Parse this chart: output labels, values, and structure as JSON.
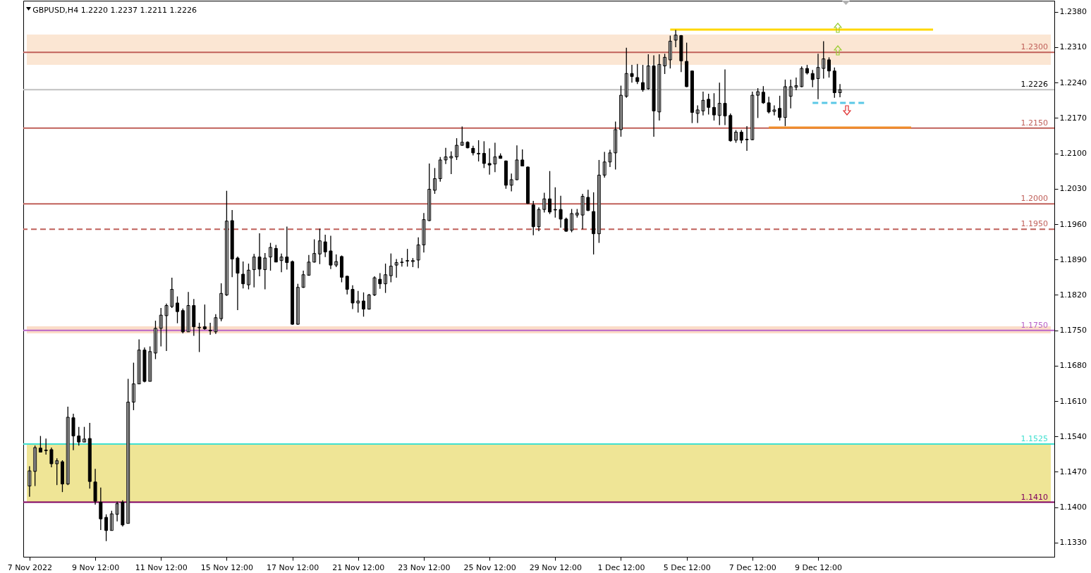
{
  "chart_data": {
    "type": "candlestick",
    "title": "GBPUSD,H4  1.2220 1.2237 1.2211 1.2226",
    "categories": [
      "7 Nov 2022",
      null,
      null,
      null,
      null,
      null,
      null,
      null,
      null,
      null,
      null,
      null,
      "9 Nov 12:00",
      null,
      null,
      null,
      null,
      null,
      null,
      null,
      null,
      null,
      null,
      null,
      "11 Nov 12:00",
      null,
      null,
      null,
      null,
      null,
      null,
      null,
      null,
      null,
      null,
      null,
      "15 Nov 12:00",
      null,
      null,
      null,
      null,
      null,
      null,
      null,
      null,
      null,
      null,
      null,
      "17 Nov 12:00",
      null,
      null,
      null,
      null,
      null,
      null,
      null,
      null,
      null,
      null,
      null,
      "21 Nov 12:00",
      null,
      null,
      null,
      null,
      null,
      null,
      null,
      null,
      null,
      null,
      null,
      "23 Nov 12:00",
      null,
      null,
      null,
      null,
      null,
      null,
      null,
      null,
      null,
      null,
      null,
      "25 Nov 12:00",
      null,
      null,
      null,
      null,
      null,
      null,
      null,
      null,
      null,
      null,
      null,
      "29 Nov 12:00",
      null,
      null,
      null,
      null,
      null,
      null,
      null,
      null,
      null,
      null,
      null,
      "1 Dec 12:00",
      null,
      null,
      null,
      null,
      null,
      null,
      null,
      null,
      null,
      null,
      null,
      "5 Dec 12:00",
      null,
      null,
      null,
      null,
      null,
      null,
      null,
      null,
      null,
      null,
      null,
      "7 Dec 12:00",
      null,
      null,
      null,
      null,
      null,
      null,
      null,
      null,
      null,
      null,
      null,
      "9 Dec 12:00",
      null,
      null,
      null,
      null,
      null,
      null,
      null,
      null,
      null,
      null,
      null,
      null,
      null,
      null,
      null,
      null,
      null,
      null,
      null,
      null,
      null,
      null,
      null,
      null,
      null,
      null,
      null,
      null,
      null,
      null,
      null,
      null,
      null,
      null,
      null,
      null,
      null,
      null,
      null,
      null,
      null,
      null
    ],
    "ohlc": [
      [
        1.1442,
        1.1481,
        1.1421,
        1.1472
      ],
      [
        1.1471,
        1.1522,
        1.1442,
        1.1518
      ],
      [
        1.1517,
        1.1541,
        1.1509,
        1.1509
      ],
      [
        1.1513,
        1.1536,
        1.1504,
        1.1512
      ],
      [
        1.1514,
        1.1518,
        1.1479,
        1.1486
      ],
      [
        1.1486,
        1.1497,
        1.1444,
        1.1492
      ],
      [
        1.149,
        1.1493,
        1.143,
        1.1446
      ],
      [
        1.1446,
        1.1599,
        1.1444,
        1.1578
      ],
      [
        1.1577,
        1.1585,
        1.1513,
        1.1541
      ],
      [
        1.1541,
        1.1559,
        1.1522,
        1.1529
      ],
      [
        1.1529,
        1.1559,
        1.1529,
        1.1535
      ],
      [
        1.1536,
        1.1567,
        1.1437,
        1.1451
      ],
      [
        1.145,
        1.1476,
        1.1405,
        1.1412
      ],
      [
        1.141,
        1.1439,
        1.1355,
        1.1377
      ],
      [
        1.138,
        1.1386,
        1.1333,
        1.1354
      ],
      [
        1.1354,
        1.1393,
        1.1354,
        1.1387
      ],
      [
        1.1386,
        1.1411,
        1.1372,
        1.1407
      ],
      [
        1.141,
        1.1414,
        1.1362,
        1.1365
      ],
      [
        1.1368,
        1.1654,
        1.1368,
        1.1608
      ],
      [
        1.1608,
        1.1686,
        1.1592,
        1.1644
      ],
      [
        1.1644,
        1.1732,
        1.1644,
        1.1711
      ],
      [
        1.1711,
        1.1716,
        1.1647,
        1.1649
      ],
      [
        1.1649,
        1.1718,
        1.1649,
        1.1708
      ],
      [
        1.1705,
        1.1769,
        1.1693,
        1.1754
      ],
      [
        1.1754,
        1.1794,
        1.1718,
        1.178
      ],
      [
        1.1779,
        1.1803,
        1.1709,
        1.1799
      ],
      [
        1.1797,
        1.1854,
        1.1794,
        1.1831
      ],
      [
        1.1804,
        1.1817,
        1.1764,
        1.1787
      ],
      [
        1.1789,
        1.1793,
        1.1744,
        1.1747
      ],
      [
        1.1747,
        1.1826,
        1.1747,
        1.1799
      ],
      [
        1.1799,
        1.1812,
        1.1739,
        1.1757
      ],
      [
        1.1755,
        1.1765,
        1.1707,
        1.1756
      ],
      [
        1.1757,
        1.1801,
        1.1751,
        1.1753
      ],
      [
        1.175,
        1.1765,
        1.1741,
        1.1749
      ],
      [
        1.1747,
        1.1782,
        1.1743,
        1.1775
      ],
      [
        1.1773,
        1.1843,
        1.1768,
        1.1823
      ],
      [
        1.182,
        1.2026,
        1.1818,
        1.1966
      ],
      [
        1.1967,
        1.1988,
        1.1855,
        1.1891
      ],
      [
        1.1893,
        1.1896,
        1.179,
        1.1863
      ],
      [
        1.1861,
        1.1886,
        1.1833,
        1.1842
      ],
      [
        1.184,
        1.1882,
        1.1831,
        1.1869
      ],
      [
        1.187,
        1.1901,
        1.1835,
        1.1895
      ],
      [
        1.1895,
        1.1942,
        1.1857,
        1.1871
      ],
      [
        1.187,
        1.1903,
        1.1831,
        1.1893
      ],
      [
        1.1895,
        1.1923,
        1.1868,
        1.1914
      ],
      [
        1.1912,
        1.1919,
        1.1885,
        1.1885
      ],
      [
        1.1888,
        1.1902,
        1.1865,
        1.1895
      ],
      [
        1.1895,
        1.1955,
        1.187,
        1.1884
      ],
      [
        1.1886,
        1.1888,
        1.1761,
        1.1762
      ],
      [
        1.1762,
        1.1842,
        1.1761,
        1.1835
      ],
      [
        1.1835,
        1.1868,
        1.1834,
        1.186
      ],
      [
        1.1859,
        1.1899,
        1.1858,
        1.1885
      ],
      [
        1.1885,
        1.193,
        1.1884,
        1.1902
      ],
      [
        1.1901,
        1.1951,
        1.1881,
        1.1927
      ],
      [
        1.1925,
        1.1939,
        1.1895,
        1.1905
      ],
      [
        1.1907,
        1.1937,
        1.1871,
        1.1879
      ],
      [
        1.1879,
        1.19,
        1.1875,
        1.1886
      ],
      [
        1.1896,
        1.1898,
        1.1845,
        1.1855
      ],
      [
        1.1857,
        1.1858,
        1.1821,
        1.1831
      ],
      [
        1.1831,
        1.1839,
        1.1792,
        1.1804
      ],
      [
        1.1804,
        1.1828,
        1.1785,
        1.1808
      ],
      [
        1.1808,
        1.1825,
        1.1777,
        1.1792
      ],
      [
        1.1792,
        1.1822,
        1.1791,
        1.182
      ],
      [
        1.182,
        1.1857,
        1.1818,
        1.1854
      ],
      [
        1.1851,
        1.1863,
        1.1832,
        1.1842
      ],
      [
        1.1842,
        1.1882,
        1.1824,
        1.186
      ],
      [
        1.1858,
        1.1902,
        1.1845,
        1.1877
      ],
      [
        1.1879,
        1.1891,
        1.1854,
        1.1884
      ],
      [
        1.1884,
        1.1893,
        1.1876,
        1.1885
      ],
      [
        1.1887,
        1.1911,
        1.1876,
        1.1888
      ],
      [
        1.1886,
        1.1893,
        1.1875,
        1.1888
      ],
      [
        1.1889,
        1.1934,
        1.1873,
        1.1919
      ],
      [
        1.1919,
        1.1982,
        1.1904,
        1.1969
      ],
      [
        1.1967,
        1.208,
        1.1966,
        1.2029
      ],
      [
        1.2027,
        1.2071,
        1.202,
        1.205
      ],
      [
        1.205,
        1.2093,
        1.2044,
        1.2087
      ],
      [
        1.2087,
        1.2111,
        1.2079,
        1.2093
      ],
      [
        1.2091,
        1.2104,
        1.2059,
        1.2094
      ],
      [
        1.2093,
        1.213,
        1.2087,
        1.2116
      ],
      [
        1.2116,
        1.2153,
        1.2115,
        1.2122
      ],
      [
        1.2122,
        1.2124,
        1.211,
        1.2111
      ],
      [
        1.211,
        1.2115,
        1.2096,
        1.2101
      ],
      [
        1.21,
        1.2126,
        1.2084,
        1.2099
      ],
      [
        1.21,
        1.2124,
        1.2071,
        1.208
      ],
      [
        1.208,
        1.211,
        1.2058,
        1.2077
      ],
      [
        1.2079,
        1.2121,
        1.2063,
        1.2093
      ],
      [
        1.2095,
        1.21,
        1.209,
        1.209
      ],
      [
        1.2085,
        1.2086,
        1.203,
        1.2037
      ],
      [
        1.2037,
        1.206,
        1.2025,
        1.2048
      ],
      [
        1.2048,
        1.2116,
        1.2047,
        1.2087
      ],
      [
        1.2087,
        1.2108,
        1.2075,
        1.2075
      ],
      [
        1.2073,
        1.2074,
        1.2,
        1.2001
      ],
      [
        1.1998,
        1.2006,
        1.1938,
        1.1955
      ],
      [
        1.1955,
        1.1993,
        1.1946,
        1.1989
      ],
      [
        1.1989,
        1.2022,
        1.1983,
        1.201
      ],
      [
        1.201,
        1.2065,
        1.198,
        1.1984
      ],
      [
        1.1989,
        1.2033,
        1.1973,
        1.1988
      ],
      [
        1.1989,
        1.2016,
        1.1953,
        1.197
      ],
      [
        1.197,
        1.1973,
        1.1945,
        1.1946
      ],
      [
        1.1948,
        1.199,
        1.1944,
        1.1981
      ],
      [
        1.1978,
        1.199,
        1.1973,
        1.1982
      ],
      [
        1.1978,
        1.202,
        1.195,
        1.2015
      ],
      [
        1.2013,
        1.2028,
        1.1986,
        1.1987
      ],
      [
        1.1985,
        1.2023,
        1.19,
        1.1941
      ],
      [
        1.1941,
        1.2087,
        1.1923,
        1.2057
      ],
      [
        1.2057,
        1.2103,
        1.2052,
        1.2083
      ],
      [
        1.2083,
        1.2107,
        1.2073,
        1.2101
      ],
      [
        1.2101,
        1.2163,
        1.2068,
        1.2147
      ],
      [
        1.2147,
        1.2234,
        1.2133,
        1.2215
      ],
      [
        1.2213,
        1.2309,
        1.221,
        1.2258
      ],
      [
        1.2258,
        1.2275,
        1.224,
        1.2252
      ],
      [
        1.225,
        1.2277,
        1.2237,
        1.2242
      ],
      [
        1.224,
        1.2275,
        1.2222,
        1.2226
      ],
      [
        1.2228,
        1.2296,
        1.2226,
        1.2273
      ],
      [
        1.2273,
        1.2294,
        1.2133,
        1.2184
      ],
      [
        1.2182,
        1.2296,
        1.2165,
        1.2276
      ],
      [
        1.2273,
        1.2297,
        1.2257,
        1.229
      ],
      [
        1.2285,
        1.2333,
        1.2268,
        1.2322
      ],
      [
        1.2324,
        1.2344,
        1.231,
        1.2334
      ],
      [
        1.2333,
        1.2334,
        1.2261,
        1.2283
      ],
      [
        1.2282,
        1.2319,
        1.2231,
        1.2232
      ],
      [
        1.2263,
        1.2264,
        1.216,
        1.2181
      ],
      [
        1.2179,
        1.2195,
        1.216,
        1.2186
      ],
      [
        1.2184,
        1.2222,
        1.2175,
        1.2205
      ],
      [
        1.2207,
        1.2218,
        1.2177,
        1.2191
      ],
      [
        1.2191,
        1.2219,
        1.2165,
        1.2176
      ],
      [
        1.2175,
        1.224,
        1.2156,
        1.2199
      ],
      [
        1.2199,
        1.2266,
        1.2156,
        1.2174
      ],
      [
        1.2175,
        1.2179,
        1.2123,
        1.2125
      ],
      [
        1.2126,
        1.2146,
        1.2121,
        1.2142
      ],
      [
        1.2142,
        1.2146,
        1.212,
        1.2126
      ],
      [
        1.2128,
        1.2154,
        1.2105,
        1.2127
      ],
      [
        1.2127,
        1.2222,
        1.2126,
        1.2215
      ],
      [
        1.2215,
        1.2229,
        1.217,
        1.2222
      ],
      [
        1.2221,
        1.2233,
        1.2198,
        1.22
      ],
      [
        1.22,
        1.2212,
        1.2179,
        1.2182
      ],
      [
        1.2183,
        1.2195,
        1.2175,
        1.2186
      ],
      [
        1.2189,
        1.2214,
        1.2165,
        1.2171
      ],
      [
        1.2171,
        1.2246,
        1.2154,
        1.2232
      ],
      [
        1.2213,
        1.2246,
        1.2189,
        1.2232
      ],
      [
        1.2231,
        1.225,
        1.2225,
        1.2234
      ],
      [
        1.2232,
        1.2272,
        1.2231,
        1.2268
      ],
      [
        1.2268,
        1.2275,
        1.2256,
        1.2259
      ],
      [
        1.2258,
        1.2265,
        1.2231,
        1.2246
      ],
      [
        1.2248,
        1.2297,
        1.2207,
        1.227
      ],
      [
        1.2268,
        1.2322,
        1.2248,
        1.2287
      ],
      [
        1.2285,
        1.229,
        1.225,
        1.2263
      ],
      [
        1.2263,
        1.227,
        1.221,
        1.222
      ],
      [
        1.222,
        1.2237,
        1.2211,
        1.2226
      ],
      null,
      null,
      null,
      null,
      null,
      null,
      null,
      null,
      null,
      null,
      null,
      null,
      null,
      null,
      null,
      null,
      null,
      null,
      null,
      null,
      null,
      null,
      null,
      null,
      null,
      null,
      null,
      null,
      null,
      null,
      null,
      null,
      null,
      null,
      null,
      null,
      null,
      null
    ],
    "series": [
      {
        "type": "line",
        "color": "#ffd700",
        "values": [
          null,
          null,
          null,
          null,
          null,
          null,
          null,
          null,
          null,
          null,
          null,
          null,
          null,
          null,
          null,
          null,
          null,
          null,
          null,
          null,
          null,
          null,
          null,
          null,
          null,
          null,
          null,
          null,
          null,
          null,
          null,
          null,
          null,
          null,
          null,
          null,
          null,
          null,
          null,
          null,
          null,
          null,
          null,
          null,
          null,
          null,
          null,
          null,
          null,
          null,
          null,
          null,
          null,
          null,
          null,
          null,
          null,
          null,
          null,
          null,
          null,
          null,
          null,
          null,
          null,
          null,
          null,
          null,
          null,
          null,
          null,
          null,
          null,
          null,
          null,
          null,
          null,
          null,
          null,
          null,
          null,
          null,
          null,
          null,
          null,
          null,
          null,
          null,
          null,
          null,
          null,
          null,
          null,
          null,
          null,
          null,
          null,
          null,
          null,
          null,
          null,
          null,
          null,
          null,
          null,
          null,
          null,
          null,
          null,
          null,
          null,
          null,
          null,
          null,
          null,
          null,
          null,
          1.2345,
          null,
          null,
          null,
          null,
          null,
          null,
          null,
          null,
          null,
          null,
          null,
          null,
          null,
          null,
          null,
          null,
          null,
          null,
          null,
          null,
          null,
          null,
          null,
          null,
          null,
          null,
          null,
          null,
          null,
          null,
          null,
          null,
          null,
          null,
          null,
          null,
          null,
          null,
          null,
          null,
          null,
          null,
          null,
          null,
          null,
          null,
          null,
          1.2345,
          null,
          null,
          null,
          null,
          null,
          null,
          null,
          null,
          null,
          null,
          null,
          null,
          null,
          null,
          null,
          null,
          null,
          null,
          null,
          null,
          null
        ]
      },
      {
        "type": "line",
        "color": "#f08c28",
        "values": [
          null,
          null,
          null,
          null,
          null,
          null,
          null,
          null,
          null,
          null,
          null,
          null,
          null,
          null,
          null,
          null,
          null,
          null,
          null,
          null,
          null,
          null,
          null,
          null,
          null,
          null,
          null,
          null,
          null,
          null,
          null,
          null,
          null,
          null,
          null,
          null,
          null,
          null,
          null,
          null,
          null,
          null,
          null,
          null,
          null,
          null,
          null,
          null,
          null,
          null,
          null,
          null,
          null,
          null,
          null,
          null,
          null,
          null,
          null,
          null,
          null,
          null,
          null,
          null,
          null,
          null,
          null,
          null,
          null,
          null,
          null,
          null,
          null,
          null,
          null,
          null,
          null,
          null,
          null,
          null,
          null,
          null,
          null,
          null,
          null,
          null,
          null,
          null,
          null,
          null,
          null,
          null,
          null,
          null,
          null,
          null,
          null,
          null,
          null,
          null,
          null,
          null,
          null,
          null,
          null,
          null,
          null,
          null,
          null,
          null,
          null,
          null,
          null,
          null,
          null,
          null,
          null,
          null,
          null,
          null,
          null,
          null,
          null,
          null,
          null,
          null,
          null,
          null,
          null,
          null,
          null,
          null,
          null,
          null,
          null,
          1.2151,
          null,
          null,
          null,
          null,
          null,
          null,
          null,
          null,
          null,
          null,
          null,
          null,
          null,
          null,
          null,
          null,
          null,
          null,
          null,
          null,
          null,
          null,
          null,
          null,
          null,
          1.2151,
          null,
          null,
          null,
          null,
          null,
          null,
          null,
          null,
          null,
          null,
          null,
          null,
          null,
          null,
          null,
          null,
          null,
          null,
          null,
          null,
          null,
          null,
          null,
          null,
          null
        ]
      },
      {
        "type": "line",
        "color": "#5ac8e6",
        "line_style": "dashed",
        "values": [
          null,
          null,
          null,
          null,
          null,
          null,
          null,
          null,
          null,
          null,
          null,
          null,
          null,
          null,
          null,
          null,
          null,
          null,
          null,
          null,
          null,
          null,
          null,
          null,
          null,
          null,
          null,
          null,
          null,
          null,
          null,
          null,
          null,
          null,
          null,
          null,
          null,
          null,
          null,
          null,
          null,
          null,
          null,
          null,
          null,
          null,
          null,
          null,
          null,
          null,
          null,
          null,
          null,
          null,
          null,
          null,
          null,
          null,
          null,
          null,
          null,
          null,
          null,
          null,
          null,
          null,
          null,
          null,
          null,
          null,
          null,
          null,
          null,
          null,
          null,
          null,
          null,
          null,
          null,
          null,
          null,
          null,
          null,
          null,
          null,
          null,
          null,
          null,
          null,
          null,
          null,
          null,
          null,
          null,
          null,
          null,
          null,
          null,
          null,
          null,
          null,
          null,
          null,
          null,
          null,
          null,
          null,
          null,
          null,
          null,
          null,
          null,
          null,
          null,
          null,
          null,
          null,
          null,
          null,
          null,
          null,
          null,
          null,
          null,
          null,
          null,
          null,
          null,
          null,
          null,
          null,
          null,
          null,
          null,
          null,
          null,
          null,
          null,
          null,
          null,
          null,
          null,
          null,
          1.22,
          null,
          null,
          null,
          null,
          null,
          null,
          null,
          null,
          null,
          1.22,
          null,
          null,
          null,
          null,
          null,
          null,
          null,
          null,
          null,
          null,
          null,
          null,
          null,
          null,
          null,
          null,
          null,
          null,
          null,
          null,
          null,
          null,
          null,
          null,
          null,
          null,
          null,
          null,
          null,
          null,
          null,
          null,
          null
        ]
      }
    ],
    "ylim": [
      1.1302,
      1.2402
    ],
    "yticks": [
      {
        "value": 1.238,
        "label": "1.2380"
      },
      {
        "value": 1.231,
        "label": "1.2310"
      },
      {
        "value": 1.224,
        "label": "1.2240"
      },
      {
        "value": 1.217,
        "label": "1.2170"
      },
      {
        "value": 1.21,
        "label": "1.2100"
      },
      {
        "value": 1.203,
        "label": "1.2030"
      },
      {
        "value": 1.196,
        "label": "1.1960"
      },
      {
        "value": 1.189,
        "label": "1.1890"
      },
      {
        "value": 1.182,
        "label": "1.1820"
      },
      {
        "value": 1.175,
        "label": "1.1750"
      },
      {
        "value": 1.168,
        "label": "1.1680"
      },
      {
        "value": 1.161,
        "label": "1.1610"
      },
      {
        "value": 1.154,
        "label": "1.1540"
      },
      {
        "value": 1.147,
        "label": "1.1470"
      },
      {
        "value": 1.14,
        "label": "1.1400"
      },
      {
        "value": 1.133,
        "label": "1.1330"
      }
    ],
    "ref_lines": [
      {
        "axis": "y",
        "value": 1.23,
        "label": "1.2300",
        "color": "#c0605a"
      },
      {
        "axis": "y",
        "value": 1.2226,
        "label": "1.2226",
        "color": "#c0c0c0"
      },
      {
        "axis": "y",
        "value": 1.215,
        "label": "1.2150",
        "color": "#c0605a"
      },
      {
        "axis": "y",
        "value": 1.2,
        "label": "1.2000",
        "color": "#c0605a"
      },
      {
        "axis": "y",
        "value": 1.195,
        "label": "1.1950",
        "color": "#c0605a",
        "line_style": "dashed"
      },
      {
        "axis": "y",
        "value": 1.175,
        "label": "1.1750",
        "color": "#b964c8"
      },
      {
        "axis": "y",
        "value": 1.1525,
        "label": "1.1525",
        "color": "#40e0d0"
      },
      {
        "axis": "y",
        "value": 1.141,
        "label": "1.1410",
        "color": "#800060"
      }
    ],
    "bands": [
      {
        "axis": "y",
        "from": 1.2275,
        "to": 1.2335,
        "color": "#fbe6d3"
      },
      {
        "axis": "y",
        "from": 1.1744,
        "to": 1.1758,
        "color": "#fbdcc8"
      },
      {
        "axis": "y",
        "from": 1.141,
        "to": 1.1525,
        "color": "#efe596"
      }
    ]
  }
}
